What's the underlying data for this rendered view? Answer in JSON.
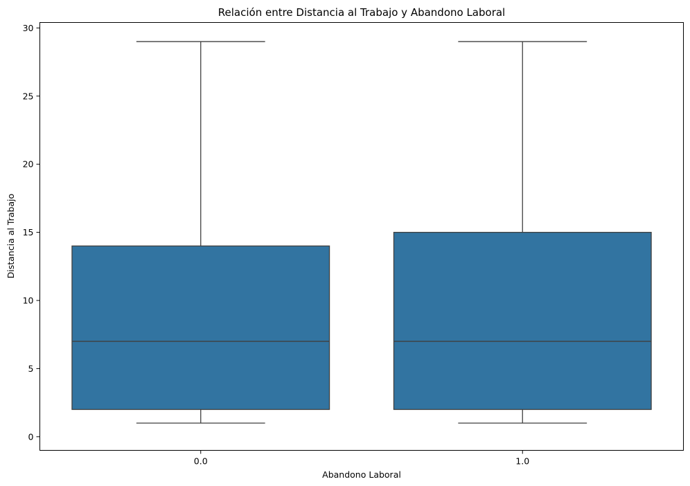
{
  "chart_data": {
    "type": "box",
    "title": "Relación entre Distancia al Trabajo y Abandono Laboral",
    "xlabel": "Abandono Laboral",
    "ylabel": "Distancia al Trabajo",
    "categories": [
      "0.0",
      "1.0"
    ],
    "boxes": [
      {
        "category": "0.0",
        "whisker_low": 1,
        "q1": 2,
        "median": 7,
        "q3": 14,
        "whisker_high": 29
      },
      {
        "category": "1.0",
        "whisker_low": 1,
        "q1": 2,
        "median": 7,
        "q3": 15,
        "whisker_high": 29
      }
    ],
    "yticks": [
      0,
      5,
      10,
      15,
      20,
      25,
      30
    ],
    "ylim": [
      -1,
      30.4
    ],
    "grid": false,
    "colors": {
      "box_fill": "#3274a1",
      "line": "#3f3f3f"
    }
  }
}
